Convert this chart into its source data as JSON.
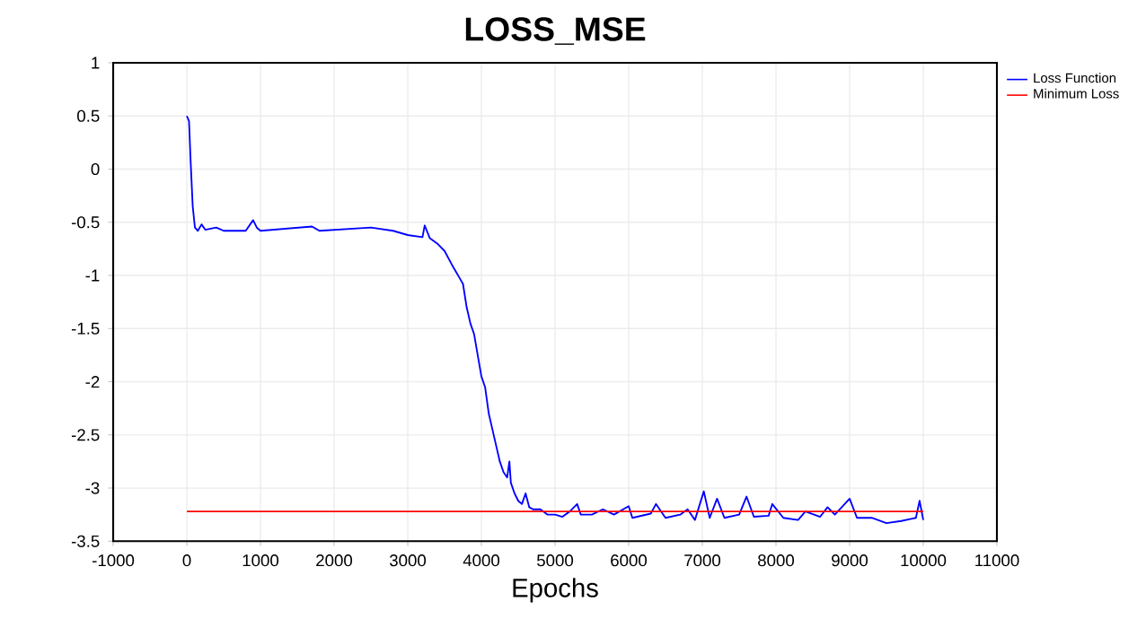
{
  "chart_data": {
    "type": "line",
    "title": "LOSS_MSE",
    "xlabel": "Epochs",
    "xlim": [
      -1000,
      11000
    ],
    "ylim": [
      -3.5,
      1
    ],
    "xticks": [
      -1000,
      0,
      1000,
      2000,
      3000,
      4000,
      5000,
      6000,
      7000,
      8000,
      9000,
      10000,
      11000
    ],
    "yticks": [
      -3.5,
      -3,
      -2.5,
      -2,
      -1.5,
      -1,
      -0.5,
      0,
      0.5,
      1
    ],
    "grid": true,
    "legend": "top right",
    "line_style": "solid",
    "marker": "none",
    "series": [
      {
        "name": "Loss Function",
        "color": "#0000ff",
        "x": [
          0,
          30,
          50,
          80,
          110,
          150,
          200,
          250,
          400,
          500,
          800,
          900,
          950,
          1000,
          1700,
          1800,
          2500,
          2800,
          3000,
          3200,
          3230,
          3300,
          3400,
          3500,
          3600,
          3700,
          3750,
          3800,
          3850,
          3900,
          3950,
          4000,
          4050,
          4100,
          4150,
          4200,
          4250,
          4300,
          4350,
          4380,
          4400,
          4450,
          4500,
          4550,
          4600,
          4650,
          4700,
          4800,
          4900,
          5000,
          5100,
          5200,
          5300,
          5350,
          5500,
          5650,
          5800,
          6000,
          6050,
          6300,
          6370,
          6500,
          6700,
          6800,
          6900,
          7020,
          7100,
          7200,
          7300,
          7500,
          7600,
          7700,
          7900,
          7950,
          8100,
          8300,
          8400,
          8600,
          8700,
          8800,
          9000,
          9100,
          9300,
          9500,
          9700,
          9900,
          9950,
          10000
        ],
        "values": [
          0.5,
          0.45,
          0.1,
          -0.35,
          -0.55,
          -0.58,
          -0.52,
          -0.57,
          -0.55,
          -0.58,
          -0.58,
          -0.48,
          -0.55,
          -0.58,
          -0.54,
          -0.58,
          -0.55,
          -0.58,
          -0.62,
          -0.64,
          -0.53,
          -0.65,
          -0.7,
          -0.77,
          -0.9,
          -1.02,
          -1.08,
          -1.3,
          -1.45,
          -1.55,
          -1.75,
          -1.95,
          -2.05,
          -2.3,
          -2.45,
          -2.6,
          -2.75,
          -2.85,
          -2.9,
          -2.75,
          -2.95,
          -3.05,
          -3.12,
          -3.15,
          -3.05,
          -3.18,
          -3.2,
          -3.2,
          -3.25,
          -3.25,
          -3.27,
          -3.22,
          -3.15,
          -3.25,
          -3.25,
          -3.2,
          -3.25,
          -3.17,
          -3.28,
          -3.24,
          -3.15,
          -3.28,
          -3.25,
          -3.2,
          -3.3,
          -3.03,
          -3.28,
          -3.1,
          -3.28,
          -3.25,
          -3.08,
          -3.27,
          -3.26,
          -3.15,
          -3.28,
          -3.3,
          -3.22,
          -3.27,
          -3.18,
          -3.25,
          -3.1,
          -3.28,
          -3.28,
          -3.33,
          -3.31,
          -3.28,
          -3.12,
          -3.3
        ]
      },
      {
        "name": "Minimum Loss",
        "color": "#ff0000",
        "x": [
          0,
          10000
        ],
        "values": [
          -3.22,
          -3.22
        ]
      }
    ]
  }
}
